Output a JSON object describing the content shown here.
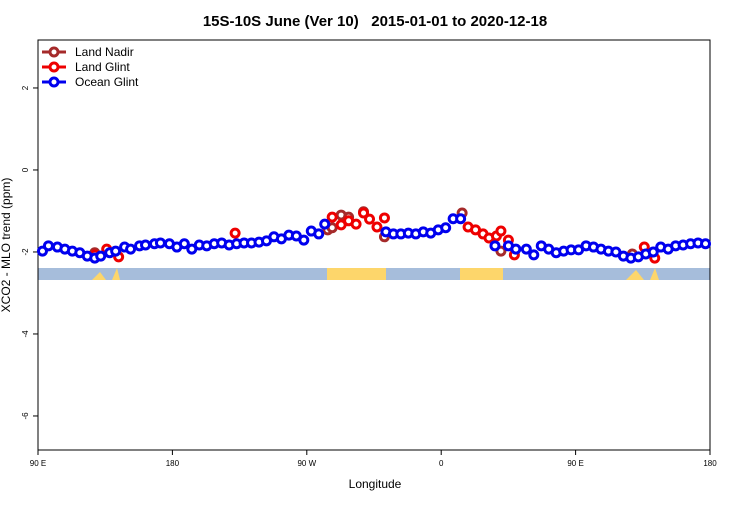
{
  "chart_data": {
    "type": "scatter",
    "title": "15S-10S June (Ver 10)   2015-01-01 to 2020-12-18",
    "x_label": "Longitude",
    "y_label": "XCO2 - MLO trend (ppm)",
    "xlim": [
      90,
      540
    ],
    "ylim": [
      -6.83,
      3.17
    ],
    "xticks": [
      {
        "value": 90,
        "label": "90 E"
      },
      180,
      {
        "value": 270,
        "label": "90 W"
      },
      {
        "value": 360,
        "label": "0"
      },
      {
        "value": 450,
        "label": "90 E"
      },
      {
        "value": 540,
        "label": "180"
      }
    ],
    "yticks": [
      -6,
      -4,
      -2,
      0,
      2
    ],
    "legend": "top-left",
    "series": [
      {
        "name": "Land Nadir",
        "color": "#a52a2a",
        "x": [
          128,
          284,
          287,
          293,
          298,
          308,
          322,
          374,
          400,
          488
        ],
        "values": [
          -2.02,
          -1.46,
          -1.41,
          -1.1,
          -1.15,
          -1.02,
          -1.63,
          -1.05,
          -1.98,
          -2.05
        ]
      },
      {
        "name": "Land Glint",
        "color": "#ee0000",
        "x": [
          128,
          136,
          144,
          222,
          287,
          293,
          298,
          303,
          308,
          312,
          317,
          322,
          378,
          383,
          388,
          392,
          397,
          400,
          405,
          409,
          496,
          503
        ],
        "values": [
          -2.07,
          -1.93,
          -2.12,
          -1.54,
          -1.15,
          -1.34,
          -1.24,
          -1.32,
          -1.05,
          -1.2,
          -1.39,
          -1.17,
          -1.39,
          -1.46,
          -1.56,
          -1.66,
          -1.61,
          -1.49,
          -1.71,
          -2.07,
          -1.88,
          -2.15
        ]
      },
      {
        "name": "Ocean Glint",
        "color": "#0000ee",
        "x": [
          93,
          97,
          103,
          108,
          113,
          118,
          123,
          128,
          132,
          138,
          142,
          148,
          152,
          158,
          162,
          168,
          172,
          178,
          183,
          188,
          193,
          198,
          203,
          208,
          213,
          218,
          223,
          228,
          233,
          238,
          243,
          248,
          253,
          258,
          263,
          268,
          273,
          278,
          282,
          323,
          328,
          333,
          338,
          343,
          348,
          353,
          358,
          363,
          368,
          373,
          396,
          405,
          410,
          417,
          422,
          427,
          432,
          437,
          442,
          447,
          452,
          457,
          462,
          467,
          472,
          477,
          482,
          487,
          492,
          497,
          502,
          507,
          512,
          517,
          522,
          527,
          532,
          537
        ],
        "values": [
          -1.98,
          -1.85,
          -1.88,
          -1.93,
          -1.98,
          -2.02,
          -2.1,
          -2.15,
          -2.1,
          -2.02,
          -1.98,
          -1.88,
          -1.93,
          -1.85,
          -1.83,
          -1.8,
          -1.78,
          -1.8,
          -1.88,
          -1.8,
          -1.93,
          -1.83,
          -1.85,
          -1.8,
          -1.78,
          -1.83,
          -1.8,
          -1.78,
          -1.78,
          -1.76,
          -1.73,
          -1.63,
          -1.68,
          -1.59,
          -1.61,
          -1.71,
          -1.49,
          -1.56,
          -1.32,
          -1.51,
          -1.56,
          -1.56,
          -1.54,
          -1.56,
          -1.51,
          -1.54,
          -1.46,
          -1.41,
          -1.19,
          -1.19,
          -1.85,
          -1.85,
          -1.93,
          -1.93,
          -2.07,
          -1.85,
          -1.93,
          -2.02,
          -1.98,
          -1.95,
          -1.95,
          -1.85,
          -1.88,
          -1.93,
          -1.98,
          -2.0,
          -2.1,
          -2.15,
          -2.12,
          -2.05,
          -2.0,
          -1.88,
          -1.93,
          -1.85,
          -1.83,
          -1.8,
          -1.78,
          -1.8
        ]
      }
    ]
  }
}
